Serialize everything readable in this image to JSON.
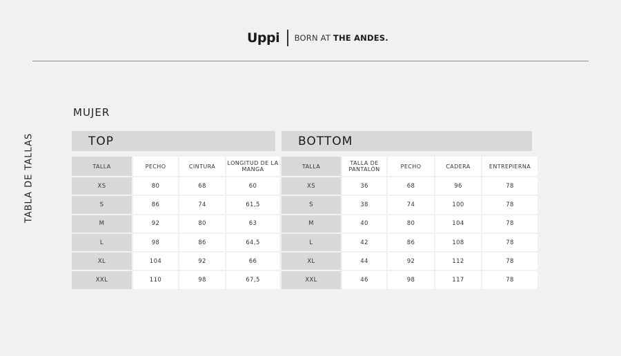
{
  "header": {
    "logo": "Uppi",
    "tagline_light": "BORN AT ",
    "tagline_bold": "THE ANDES."
  },
  "section_title": "MUJER",
  "side_label": "TABLA DE TALLAS",
  "top": {
    "title": "TOP",
    "columns": [
      "TALLA",
      "PECHO",
      "CINTURA",
      "LONGITUD DE LA MANGA"
    ],
    "rows": [
      [
        "XS",
        "80",
        "68",
        "60"
      ],
      [
        "S",
        "86",
        "74",
        "61,5"
      ],
      [
        "M",
        "92",
        "80",
        "63"
      ],
      [
        "L",
        "98",
        "86",
        "64,5"
      ],
      [
        "XL",
        "104",
        "92",
        "66"
      ],
      [
        "XXL",
        "110",
        "98",
        "67,5"
      ]
    ]
  },
  "bottom": {
    "title": "BOTTOM",
    "columns": [
      "TALLA",
      "TALLA DE PANTALÓN",
      "PECHO",
      "CADERA",
      "ENTREPIERNA"
    ],
    "rows": [
      [
        "XS",
        "36",
        "68",
        "96",
        "78"
      ],
      [
        "S",
        "38",
        "74",
        "100",
        "78"
      ],
      [
        "M",
        "40",
        "80",
        "104",
        "78"
      ],
      [
        "L",
        "42",
        "86",
        "108",
        "78"
      ],
      [
        "XL",
        "44",
        "92",
        "112",
        "78"
      ],
      [
        "XXL",
        "46",
        "98",
        "117",
        "78"
      ]
    ]
  }
}
